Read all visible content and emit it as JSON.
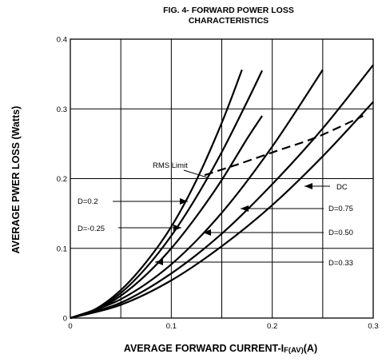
{
  "chart_data": {
    "type": "line",
    "title": "FIG. 4- FORWARD POWER LOSS",
    "subtitle": "CHARACTERISTICS",
    "xlabel": "AVERAGE FORWARD CURRENT-I",
    "xlabel_sub": "F(AV)",
    "xlabel_unit": "(A)",
    "ylabel": "AVERAGE PWER LOSS (Watts)",
    "xlim": [
      0,
      0.3
    ],
    "ylim": [
      0,
      0.4
    ],
    "x_ticks": [
      "0",
      "0.1",
      "0.2",
      "0.3"
    ],
    "y_ticks": [
      "0",
      "0.1",
      "0.2",
      "0.3",
      "0.4"
    ],
    "grid": true,
    "series": [
      {
        "name": "D=0.2",
        "x": [
          0,
          0.025,
          0.05,
          0.075,
          0.1,
          0.125,
          0.15,
          0.17
        ],
        "y": [
          0,
          0.013,
          0.04,
          0.08,
          0.131,
          0.198,
          0.28,
          0.356
        ]
      },
      {
        "name": "D=-0.25",
        "x": [
          0,
          0.025,
          0.05,
          0.075,
          0.1,
          0.125,
          0.15,
          0.175,
          0.19
        ],
        "y": [
          0,
          0.012,
          0.036,
          0.072,
          0.118,
          0.174,
          0.238,
          0.31,
          0.355
        ]
      },
      {
        "name": "",
        "x": [
          0,
          0.025,
          0.05,
          0.075,
          0.1,
          0.125,
          0.15,
          0.175,
          0.19
        ],
        "y": [
          0,
          0.011,
          0.032,
          0.062,
          0.1,
          0.146,
          0.198,
          0.257,
          0.29
        ]
      },
      {
        "name": "D=0.50",
        "x": [
          0,
          0.05,
          0.1,
          0.15,
          0.2,
          0.25
        ],
        "y": [
          0,
          0.027,
          0.077,
          0.151,
          0.246,
          0.356
        ]
      },
      {
        "name": "D=0.75",
        "x": [
          0,
          0.05,
          0.1,
          0.15,
          0.2,
          0.25,
          0.3
        ],
        "y": [
          0,
          0.022,
          0.064,
          0.121,
          0.192,
          0.272,
          0.363
        ]
      },
      {
        "name": "DC",
        "x": [
          0,
          0.05,
          0.1,
          0.15,
          0.2,
          0.25,
          0.3
        ],
        "y": [
          0,
          0.019,
          0.054,
          0.103,
          0.162,
          0.232,
          0.31
        ]
      }
    ],
    "rms_limit": {
      "name": "RMS Limit",
      "style": "dashed",
      "x": [
        0.133,
        0.165,
        0.205,
        0.245,
        0.29
      ],
      "y": [
        0.205,
        0.22,
        0.24,
        0.26,
        0.29
      ]
    },
    "annotations": [
      {
        "text": "RMS Limit",
        "target": "rms_limit"
      },
      {
        "text": "D=0.2",
        "target": 0
      },
      {
        "text": "D=-0.25",
        "target": 1
      },
      {
        "text": "DC",
        "target": 5
      },
      {
        "text": "D=0.75",
        "target": 4
      },
      {
        "text": "D=0.50",
        "target": 3
      },
      {
        "text": "D=0.33",
        "target": 2
      }
    ]
  }
}
